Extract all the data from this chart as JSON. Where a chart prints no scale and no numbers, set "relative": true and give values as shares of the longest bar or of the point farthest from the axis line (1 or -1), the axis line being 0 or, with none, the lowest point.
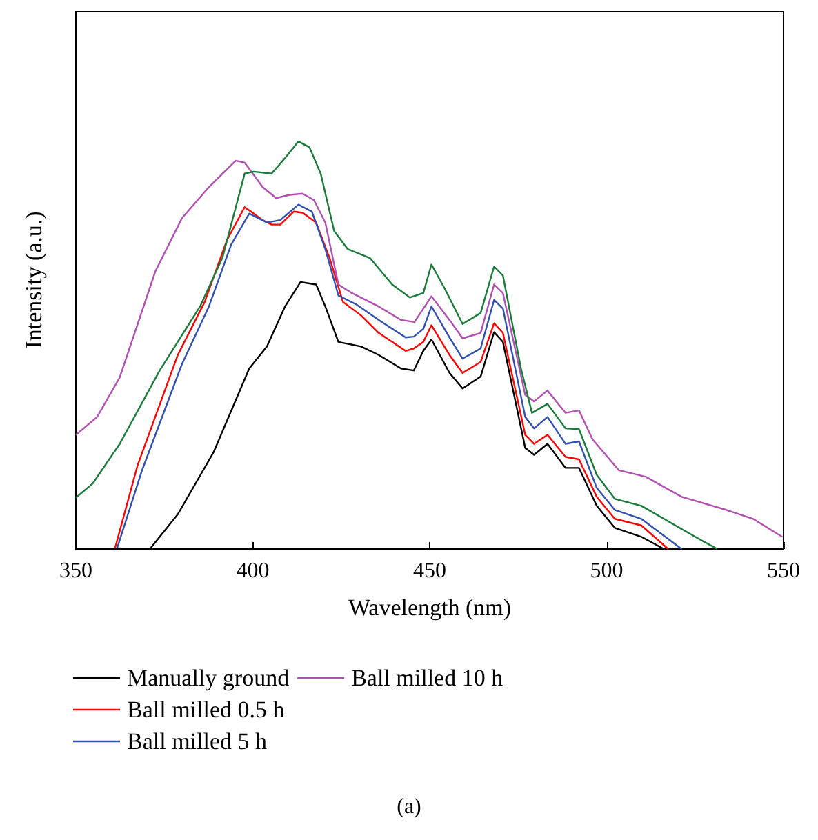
{
  "chart_data": {
    "type": "line",
    "relative": true,
    "xlabel": "Wavelength (nm)",
    "ylabel": "Intensity (a.u.)",
    "xlim": [
      350,
      550
    ],
    "xticks": [
      350,
      400,
      450,
      500,
      550
    ],
    "grid": false,
    "legend": "bottom",
    "marker": "none",
    "annotations": [
      "(a)"
    ],
    "series": [
      {
        "name": "Manually ground",
        "color": "#000000",
        "x": [
          371.2,
          378.8,
          388.9,
          399,
          404,
          409.1,
          413.5,
          417.9,
          420.5,
          424.2,
          430.6,
          435.6,
          441.9,
          445.5,
          448.2,
          450.5,
          455.6,
          459.3,
          464.4,
          468.2,
          470.7,
          477,
          479.5,
          483.3,
          488.4,
          492.2,
          497.2,
          502.3,
          509.8,
          516.2
        ],
        "values": [
          0.003,
          0.085,
          0.237,
          0.443,
          0.497,
          0.595,
          0.655,
          0.649,
          0.595,
          0.508,
          0.497,
          0.476,
          0.443,
          0.438,
          0.486,
          0.514,
          0.432,
          0.394,
          0.423,
          0.532,
          0.508,
          0.248,
          0.231,
          0.258,
          0.199,
          0.199,
          0.106,
          0.052,
          0.03,
          0
        ]
      },
      {
        "name": "Ball milled 0.5 h",
        "color": "#ff0000",
        "x": [
          361.1,
          367.4,
          378.8,
          386.4,
          392.7,
          397.7,
          402.8,
          405.3,
          407.8,
          411.6,
          414.1,
          417.9,
          421.7,
          425.5,
          430.6,
          435.6,
          443.2,
          445.5,
          448.2,
          450.5,
          455.6,
          459.3,
          464.4,
          468.2,
          470.7,
          477,
          479.5,
          483.3,
          488.4,
          492.2,
          497.2,
          502.3,
          509.8,
          517.4
        ],
        "values": [
          0.003,
          0.204,
          0.476,
          0.606,
          0.758,
          0.839,
          0.807,
          0.796,
          0.796,
          0.828,
          0.825,
          0.801,
          0.714,
          0.606,
          0.573,
          0.53,
          0.486,
          0.492,
          0.508,
          0.549,
          0.476,
          0.432,
          0.459,
          0.554,
          0.53,
          0.28,
          0.258,
          0.28,
          0.226,
          0.22,
          0.128,
          0.074,
          0.058,
          0
        ]
      },
      {
        "name": "Ball milled 5 h",
        "color": "#3050b0",
        "x": [
          361.7,
          368.7,
          380,
          387.6,
          393.9,
          399,
          404,
          407.8,
          412.9,
          416.7,
          420.5,
          424.2,
          429.3,
          435.6,
          443.2,
          445.5,
          448.2,
          450.5,
          455.6,
          459.3,
          464.4,
          468.2,
          470.7,
          477,
          479.5,
          483.3,
          488.4,
          492.2,
          497.2,
          502.3,
          509.8,
          521.2
        ],
        "values": [
          0.003,
          0.193,
          0.454,
          0.595,
          0.747,
          0.823,
          0.801,
          0.807,
          0.845,
          0.828,
          0.736,
          0.622,
          0.6,
          0.562,
          0.519,
          0.521,
          0.54,
          0.595,
          0.519,
          0.467,
          0.492,
          0.611,
          0.59,
          0.324,
          0.296,
          0.324,
          0.258,
          0.264,
          0.15,
          0.096,
          0.074,
          0
        ]
      },
      {
        "name": "Ball milled 10 h",
        "color": "#b050b0",
        "x": [
          350,
          356,
          362.4,
          372.5,
          380,
          387.6,
          395.2,
          397.7,
          402.8,
          406.6,
          410.4,
          414.1,
          417.3,
          420.5,
          424.2,
          428,
          435.6,
          441.9,
          445.7,
          450.5,
          455.6,
          459.3,
          464.4,
          468.2,
          470.7,
          477,
          479.5,
          483.3,
          488.4,
          492.2,
          496,
          503.5,
          511.1,
          521.2,
          533.8,
          541.4,
          549.6
        ],
        "values": [
          0.28,
          0.324,
          0.421,
          0.682,
          0.812,
          0.888,
          0.953,
          0.948,
          0.888,
          0.861,
          0.869,
          0.872,
          0.856,
          0.801,
          0.649,
          0.628,
          0.595,
          0.562,
          0.557,
          0.62,
          0.562,
          0.517,
          0.53,
          0.649,
          0.628,
          0.378,
          0.362,
          0.389,
          0.334,
          0.34,
          0.269,
          0.193,
          0.177,
          0.128,
          0.096,
          0.074,
          0.03
        ]
      },
      {
        "color": "#1a7a3a",
        "x": [
          350,
          354.8,
          362.4,
          373.7,
          385.1,
          391.4,
          397.7,
          400.3,
          405.3,
          409.1,
          412.9,
          416,
          419.2,
          423,
          426.8,
          433.1,
          439.4,
          444.4,
          448.2,
          450.5,
          454.3,
          459.3,
          464.4,
          468.2,
          470.7,
          475.8,
          478.9,
          483.3,
          488.4,
          492.2,
          497.2,
          502.3,
          509.8,
          516.2,
          525,
          531.3
        ],
        "values": [
          0.126,
          0.161,
          0.258,
          0.438,
          0.595,
          0.714,
          0.921,
          0.926,
          0.921,
          0.959,
          1,
          0.986,
          0.921,
          0.78,
          0.736,
          0.714,
          0.649,
          0.617,
          0.628,
          0.698,
          0.638,
          0.552,
          0.579,
          0.693,
          0.671,
          0.443,
          0.334,
          0.356,
          0.296,
          0.294,
          0.182,
          0.123,
          0.106,
          0.074,
          0.03,
          0
        ]
      }
    ]
  }
}
